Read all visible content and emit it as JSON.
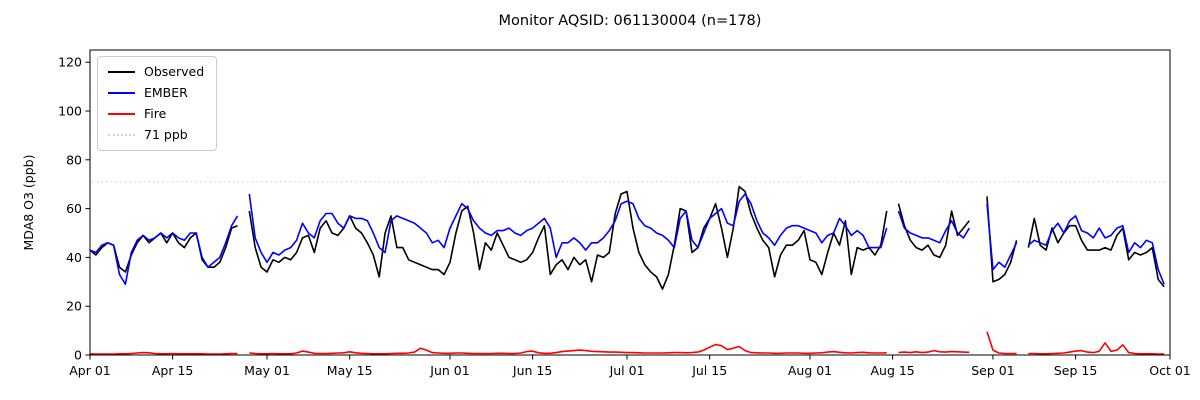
{
  "chart_data": {
    "type": "line",
    "title": "Monitor AQSID: 061130004 (n=178)",
    "xlabel": "",
    "ylabel": "MDA8 O3 (ppb)",
    "ylim": [
      0,
      125
    ],
    "grid": false,
    "legend_position": "upper left",
    "yticks": [
      0,
      20,
      40,
      60,
      80,
      100,
      120
    ],
    "x_ticks": [
      {
        "day": 0,
        "label": "Apr 01"
      },
      {
        "day": 14,
        "label": "Apr 15"
      },
      {
        "day": 30,
        "label": "May 01"
      },
      {
        "day": 44,
        "label": "May 15"
      },
      {
        "day": 61,
        "label": "Jun 01"
      },
      {
        "day": 75,
        "label": "Jun 15"
      },
      {
        "day": 91,
        "label": "Jul 01"
      },
      {
        "day": 105,
        "label": "Jul 15"
      },
      {
        "day": 122,
        "label": "Aug 01"
      },
      {
        "day": 136,
        "label": "Aug 15"
      },
      {
        "day": 153,
        "label": "Sep 01"
      },
      {
        "day": 167,
        "label": "Sep 15"
      },
      {
        "day": 183,
        "label": "Oct 01"
      }
    ],
    "x_range_days": 183,
    "threshold": {
      "label": "71 ppb",
      "value": 71,
      "color": "#d3d3d3",
      "style": "dotted"
    },
    "legend": [
      {
        "label": "Observed",
        "color": "#000000",
        "style": "solid"
      },
      {
        "label": "EMBER",
        "color": "#0000ff",
        "style": "solid"
      },
      {
        "label": "Fire",
        "color": "#ff0000",
        "style": "solid"
      },
      {
        "label": "71 ppb",
        "color": "#d3d3d3",
        "style": "dotted"
      }
    ],
    "series": [
      {
        "name": "Observed",
        "color": "#000000",
        "values": [
          43,
          41,
          44,
          46,
          45,
          36,
          34,
          41,
          46,
          49,
          46,
          48,
          50,
          46,
          50,
          46,
          44,
          48,
          50,
          39,
          36,
          36,
          38,
          44,
          52,
          53,
          null,
          59,
          44,
          36,
          34,
          39,
          38,
          40,
          39,
          42,
          48,
          49,
          42,
          52,
          55,
          50,
          49,
          52,
          57,
          52,
          50,
          46,
          41,
          32,
          50,
          57,
          44,
          44,
          39,
          38,
          37,
          36,
          35,
          35,
          33,
          38,
          50,
          59,
          61,
          50,
          35,
          46,
          43,
          50,
          45,
          40,
          39,
          38,
          39,
          42,
          48,
          53,
          33,
          37,
          39,
          35,
          40,
          37,
          39,
          30,
          41,
          40,
          42,
          58,
          66,
          67,
          52,
          42,
          37,
          34,
          32,
          27,
          33,
          45,
          60,
          59,
          42,
          44,
          52,
          56,
          62,
          52,
          40,
          52,
          69,
          67,
          58,
          52,
          47,
          44,
          32,
          41,
          45,
          45,
          47,
          51,
          39,
          38,
          33,
          42,
          50,
          45,
          55,
          33,
          44,
          43,
          44,
          41,
          45,
          59,
          null,
          62,
          53,
          47,
          44,
          43,
          45,
          41,
          40,
          45,
          59,
          49,
          52,
          55,
          null,
          null,
          65,
          30,
          31,
          33,
          38,
          47,
          null,
          44,
          56,
          45,
          43,
          52,
          46,
          50,
          53,
          53,
          47,
          43,
          43,
          43,
          44,
          43,
          49,
          52,
          39,
          42,
          41,
          42,
          44,
          31,
          28
        ]
      },
      {
        "name": "EMBER",
        "color": "#0000ff",
        "values": [
          43,
          42,
          45,
          46,
          45,
          33,
          29,
          42,
          47,
          49,
          47,
          48,
          50,
          48,
          50,
          48,
          47,
          50,
          50,
          40,
          36,
          38,
          40,
          46,
          53,
          57,
          null,
          66,
          48,
          42,
          38,
          42,
          41,
          43,
          44,
          47,
          54,
          50,
          48,
          55,
          58,
          58,
          54,
          52,
          57,
          56,
          56,
          55,
          50,
          44,
          42,
          55,
          57,
          56,
          55,
          54,
          52,
          50,
          46,
          47,
          44,
          52,
          57,
          62,
          60,
          55,
          52,
          50,
          49,
          51,
          51,
          52,
          50,
          49,
          51,
          52,
          54,
          56,
          52,
          40,
          46,
          46,
          48,
          46,
          43,
          46,
          46,
          48,
          51,
          55,
          62,
          63,
          62,
          56,
          53,
          52,
          50,
          49,
          47,
          44,
          56,
          59,
          47,
          44,
          50,
          56,
          58,
          60,
          54,
          53,
          63,
          66,
          62,
          55,
          50,
          48,
          45,
          49,
          52,
          53,
          53,
          52,
          51,
          50,
          46,
          49,
          50,
          56,
          53,
          49,
          51,
          49,
          44,
          44,
          44,
          52,
          null,
          59,
          52,
          50,
          49,
          48,
          48,
          47,
          46,
          51,
          55,
          50,
          48,
          52,
          null,
          null,
          62,
          35,
          38,
          36,
          41,
          46,
          null,
          45,
          47,
          46,
          45,
          51,
          54,
          50,
          55,
          57,
          51,
          50,
          48,
          52,
          48,
          49,
          52,
          53,
          42,
          46,
          44,
          47,
          46,
          35,
          29
        ]
      },
      {
        "name": "Fire",
        "color": "#ff0000",
        "values": [
          0.5,
          0.4,
          0.4,
          0.4,
          0.4,
          0.5,
          0.5,
          0.6,
          0.8,
          1.0,
          0.9,
          0.6,
          0.5,
          0.5,
          0.6,
          0.5,
          0.5,
          0.5,
          0.5,
          0.5,
          0.4,
          0.4,
          0.4,
          0.5,
          0.6,
          0.6,
          null,
          0.8,
          0.6,
          0.5,
          0.5,
          0.6,
          0.5,
          0.5,
          0.5,
          0.8,
          1.6,
          1.2,
          0.7,
          0.6,
          0.6,
          0.7,
          0.8,
          0.9,
          1.3,
          0.9,
          0.7,
          0.6,
          0.5,
          0.5,
          0.5,
          0.6,
          0.7,
          0.7,
          0.8,
          1.2,
          2.8,
          2.0,
          1.0,
          0.8,
          0.7,
          0.7,
          0.8,
          0.8,
          0.7,
          0.6,
          0.6,
          0.6,
          0.6,
          0.7,
          0.7,
          0.6,
          0.6,
          0.8,
          1.4,
          1.6,
          0.9,
          0.7,
          0.7,
          1.0,
          1.4,
          1.6,
          1.8,
          2.0,
          1.8,
          1.5,
          1.4,
          1.3,
          1.2,
          1.2,
          1.1,
          1.0,
          1.0,
          0.9,
          0.8,
          0.8,
          0.8,
          0.8,
          0.9,
          1.0,
          1.0,
          0.9,
          1.0,
          1.2,
          2.0,
          3.2,
          4.3,
          3.8,
          2.2,
          2.8,
          3.5,
          1.8,
          1.0,
          0.9,
          0.8,
          0.8,
          0.7,
          0.7,
          0.8,
          0.8,
          0.8,
          0.7,
          0.7,
          0.8,
          0.9,
          1.2,
          1.4,
          1.1,
          0.9,
          0.8,
          1.0,
          1.1,
          0.9,
          0.8,
          0.8,
          0.9,
          null,
          1.0,
          1.2,
          1.0,
          1.3,
          1.0,
          1.2,
          1.8,
          1.3,
          1.2,
          1.4,
          1.3,
          1.2,
          1.1,
          null,
          null,
          9.5,
          2.0,
          0.8,
          0.6,
          0.6,
          0.6,
          null,
          0.6,
          0.6,
          0.5,
          0.5,
          0.6,
          0.7,
          0.8,
          1.2,
          1.6,
          1.8,
          1.2,
          1.0,
          1.5,
          5.0,
          1.5,
          2.0,
          4.2,
          1.0,
          0.6,
          0.5,
          0.5,
          0.5,
          0.4,
          0.4
        ]
      }
    ]
  }
}
